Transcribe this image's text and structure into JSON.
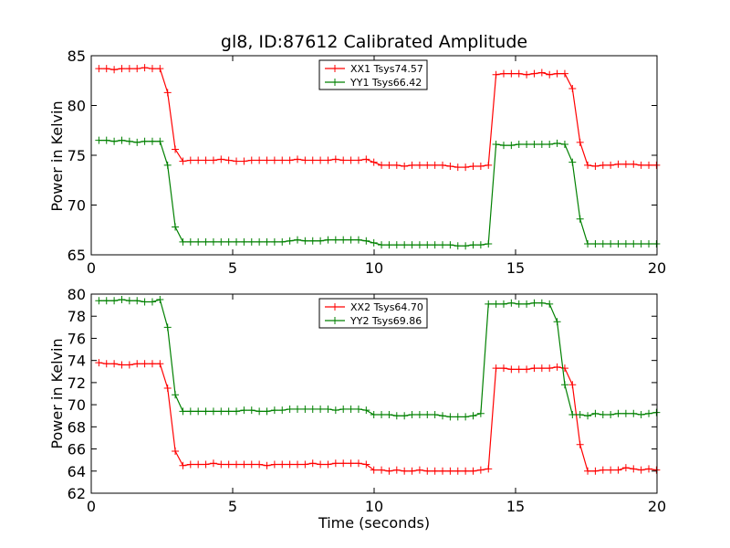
{
  "chart_data": [
    {
      "type": "line",
      "title": "gl8, ID:87612 Calibrated Amplitude",
      "xlabel": "",
      "ylabel": "Power in Kelvin",
      "xlim": [
        0,
        20
      ],
      "ylim": [
        65,
        85
      ],
      "x_ticks": [
        0,
        5,
        10,
        15,
        20
      ],
      "y_ticks": [
        65,
        70,
        75,
        80,
        85
      ],
      "legend_position": "top-center",
      "grid": false,
      "x": [
        0.27,
        0.54,
        0.81,
        1.08,
        1.35,
        1.62,
        1.89,
        2.16,
        2.43,
        2.7,
        2.97,
        3.24,
        3.51,
        3.78,
        4.05,
        4.32,
        4.59,
        4.86,
        5.13,
        5.4,
        5.67,
        5.94,
        6.21,
        6.48,
        6.75,
        7.02,
        7.29,
        7.56,
        7.83,
        8.1,
        8.37,
        8.64,
        8.91,
        9.18,
        9.45,
        9.72,
        9.99,
        10.26,
        10.53,
        10.8,
        11.07,
        11.34,
        11.61,
        11.88,
        12.15,
        12.42,
        12.69,
        12.96,
        13.23,
        13.5,
        13.77,
        14.04,
        14.31,
        14.58,
        14.85,
        15.12,
        15.39,
        15.66,
        15.93,
        16.2,
        16.47,
        16.74,
        17.01,
        17.28,
        17.55,
        17.82,
        18.09,
        18.36,
        18.63,
        18.9,
        19.17,
        19.44,
        19.71,
        19.98
      ],
      "series": [
        {
          "name": "XX1 Tsys74.57",
          "color": "#ff0000",
          "values": [
            83.7,
            83.7,
            83.6,
            83.7,
            83.7,
            83.7,
            83.8,
            83.7,
            83.7,
            81.3,
            75.6,
            74.4,
            74.5,
            74.5,
            74.5,
            74.5,
            74.6,
            74.5,
            74.4,
            74.4,
            74.5,
            74.5,
            74.5,
            74.5,
            74.5,
            74.5,
            74.6,
            74.5,
            74.5,
            74.5,
            74.5,
            74.6,
            74.5,
            74.5,
            74.5,
            74.6,
            74.3,
            74.0,
            74.0,
            74.0,
            73.9,
            74.0,
            74.0,
            74.0,
            74.0,
            74.0,
            73.9,
            73.8,
            73.8,
            73.9,
            73.9,
            74.0,
            83.1,
            83.2,
            83.2,
            83.2,
            83.1,
            83.2,
            83.3,
            83.1,
            83.2,
            83.2,
            81.7,
            76.3,
            74.0,
            73.9,
            74.0,
            74.0,
            74.1,
            74.1,
            74.1,
            74.0,
            74.0,
            74.0
          ],
          "marker": "+"
        },
        {
          "name": "YY1 Tsys66.42",
          "color": "#008000",
          "values": [
            76.5,
            76.5,
            76.4,
            76.5,
            76.4,
            76.3,
            76.4,
            76.4,
            76.4,
            74.0,
            67.8,
            66.3,
            66.3,
            66.3,
            66.3,
            66.3,
            66.3,
            66.3,
            66.3,
            66.3,
            66.3,
            66.3,
            66.3,
            66.3,
            66.3,
            66.4,
            66.5,
            66.4,
            66.4,
            66.4,
            66.5,
            66.5,
            66.5,
            66.5,
            66.5,
            66.4,
            66.2,
            66.0,
            66.0,
            66.0,
            66.0,
            66.0,
            66.0,
            66.0,
            66.0,
            66.0,
            66.0,
            65.9,
            65.9,
            66.0,
            66.0,
            66.1,
            76.1,
            76.0,
            76.0,
            76.1,
            76.1,
            76.1,
            76.1,
            76.1,
            76.2,
            76.1,
            74.3,
            68.6,
            66.1,
            66.1,
            66.1,
            66.1,
            66.1,
            66.1,
            66.1,
            66.1,
            66.1,
            66.1
          ],
          "marker": "+"
        }
      ]
    },
    {
      "type": "line",
      "title": "",
      "xlabel": "Time (seconds)",
      "ylabel": "Power in Kelvin",
      "xlim": [
        0,
        20
      ],
      "ylim": [
        62,
        80
      ],
      "x_ticks": [
        0,
        5,
        10,
        15,
        20
      ],
      "y_ticks": [
        62,
        64,
        66,
        68,
        70,
        72,
        74,
        76,
        78,
        80
      ],
      "legend_position": "top-center",
      "grid": false,
      "x": [
        0.27,
        0.54,
        0.81,
        1.08,
        1.35,
        1.62,
        1.89,
        2.16,
        2.43,
        2.7,
        2.97,
        3.24,
        3.51,
        3.78,
        4.05,
        4.32,
        4.59,
        4.86,
        5.13,
        5.4,
        5.67,
        5.94,
        6.21,
        6.48,
        6.75,
        7.02,
        7.29,
        7.56,
        7.83,
        8.1,
        8.37,
        8.64,
        8.91,
        9.18,
        9.45,
        9.72,
        9.99,
        10.26,
        10.53,
        10.8,
        11.07,
        11.34,
        11.61,
        11.88,
        12.15,
        12.42,
        12.69,
        12.96,
        13.23,
        13.5,
        13.77,
        14.04,
        14.31,
        14.58,
        14.85,
        15.12,
        15.39,
        15.66,
        15.93,
        16.2,
        16.47,
        16.74,
        17.01,
        17.28,
        17.55,
        17.82,
        18.09,
        18.36,
        18.63,
        18.9,
        19.17,
        19.44,
        19.71,
        19.98
      ],
      "series": [
        {
          "name": "XX2 Tsys64.70",
          "color": "#ff0000",
          "values": [
            73.8,
            73.7,
            73.7,
            73.6,
            73.6,
            73.7,
            73.7,
            73.7,
            73.7,
            71.5,
            65.8,
            64.5,
            64.6,
            64.6,
            64.6,
            64.7,
            64.6,
            64.6,
            64.6,
            64.6,
            64.6,
            64.6,
            64.5,
            64.6,
            64.6,
            64.6,
            64.6,
            64.6,
            64.7,
            64.6,
            64.6,
            64.7,
            64.7,
            64.7,
            64.7,
            64.6,
            64.1,
            64.1,
            64.0,
            64.1,
            64.0,
            64.0,
            64.1,
            64.0,
            64.0,
            64.0,
            64.0,
            64.0,
            64.0,
            64.0,
            64.1,
            64.2,
            73.3,
            73.3,
            73.2,
            73.2,
            73.2,
            73.3,
            73.3,
            73.3,
            73.4,
            73.3,
            71.8,
            66.4,
            64.0,
            64.0,
            64.1,
            64.1,
            64.1,
            64.3,
            64.2,
            64.1,
            64.2,
            64.1
          ],
          "marker": "+"
        },
        {
          "name": "YY2 Tsys69.86",
          "color": "#008000",
          "values": [
            79.4,
            79.4,
            79.4,
            79.5,
            79.4,
            79.4,
            79.3,
            79.3,
            79.5,
            77.0,
            70.9,
            69.4,
            69.4,
            69.4,
            69.4,
            69.4,
            69.4,
            69.4,
            69.4,
            69.5,
            69.5,
            69.4,
            69.4,
            69.5,
            69.5,
            69.6,
            69.6,
            69.6,
            69.6,
            69.6,
            69.6,
            69.5,
            69.6,
            69.6,
            69.6,
            69.5,
            69.1,
            69.1,
            69.1,
            69.0,
            69.0,
            69.1,
            69.1,
            69.1,
            69.1,
            69.0,
            68.9,
            68.9,
            68.9,
            69.0,
            69.2,
            79.1,
            79.1,
            79.1,
            79.2,
            79.1,
            79.1,
            79.2,
            79.2,
            79.1,
            77.5,
            71.8,
            69.1,
            69.1,
            69.0,
            69.2,
            69.1,
            69.1,
            69.2,
            69.2,
            69.2,
            69.1,
            69.2,
            69.3
          ],
          "marker": "+"
        }
      ]
    }
  ]
}
